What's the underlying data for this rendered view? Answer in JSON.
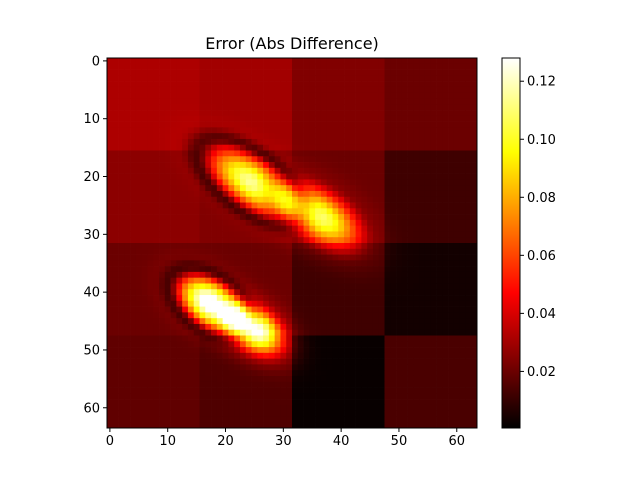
{
  "chart_data": {
    "type": "heatmap",
    "title": "Error (Abs Difference)",
    "colormap": "hot",
    "colormap_stops": [
      "#000000",
      "#ff0000",
      "#ffff00",
      "#ffffff"
    ],
    "grid": false,
    "xlim": [
      -0.5,
      63.5
    ],
    "ylim": [
      63.5,
      -0.5
    ],
    "x_ticks": [
      0,
      10,
      20,
      30,
      40,
      50,
      60
    ],
    "y_ticks": [
      0,
      10,
      20,
      30,
      40,
      50,
      60
    ],
    "matrix_size": [
      64,
      64
    ],
    "colorbar": {
      "range": [
        0.0005,
        0.128
      ],
      "ticks": [
        0.02,
        0.04,
        0.06,
        0.08,
        0.1,
        0.12
      ],
      "tick_labels": [
        "0.02",
        "0.04",
        "0.06",
        "0.08",
        "0.10",
        "0.12"
      ]
    },
    "background_blocks": {
      "row_edges": [
        0,
        16,
        32,
        48,
        64
      ],
      "col_edges": [
        0,
        16,
        32,
        48,
        64
      ],
      "values": [
        [
          0.032,
          0.03,
          0.024,
          0.02
        ],
        [
          0.026,
          0.024,
          0.02,
          0.012
        ],
        [
          0.02,
          0.02,
          0.012,
          0.004
        ],
        [
          0.018,
          0.015,
          0.002,
          0.014
        ]
      ]
    },
    "features": [
      {
        "center_row": 21,
        "center_col": 24.5,
        "peak": 0.09,
        "rotation_deg": 55,
        "along": 5.5,
        "across": 2.6,
        "dark_ring": 0.6
      },
      {
        "center_row": 27,
        "center_col": 36.5,
        "peak": 0.088,
        "rotation_deg": 55,
        "along": 5.2,
        "across": 2.8,
        "dark_ring": 0.15
      },
      {
        "center_row": 42,
        "center_col": 17.5,
        "peak": 0.118,
        "rotation_deg": 55,
        "along": 4.2,
        "across": 2.5,
        "dark_ring": 0.6
      },
      {
        "center_row": 46.5,
        "center_col": 25,
        "peak": 0.115,
        "rotation_deg": 55,
        "along": 3.8,
        "across": 2.4,
        "dark_ring": 0.1
      }
    ]
  }
}
